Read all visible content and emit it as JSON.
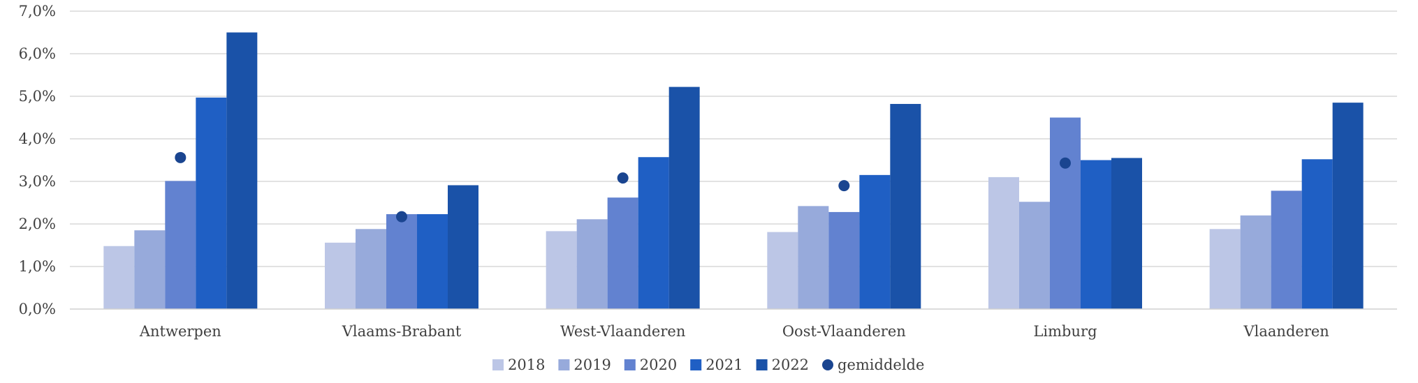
{
  "chart_data": {
    "type": "bar",
    "categories": [
      "Antwerpen",
      "Vlaams-Brabant",
      "West-Vlaanderen",
      "Oost-Vlaanderen",
      "Limburg",
      "Vlaanderen"
    ],
    "series": [
      {
        "name": "2018",
        "color": "#bcc6e6",
        "values": [
          1.48,
          1.56,
          1.83,
          1.81,
          3.1,
          1.88
        ]
      },
      {
        "name": "2019",
        "color": "#97aadb",
        "values": [
          1.85,
          1.88,
          2.11,
          2.42,
          2.52,
          2.2
        ]
      },
      {
        "name": "2020",
        "color": "#6282d0",
        "values": [
          3.01,
          2.23,
          2.62,
          2.28,
          4.5,
          2.78
        ]
      },
      {
        "name": "2021",
        "color": "#1f5fc4",
        "values": [
          4.97,
          2.23,
          3.57,
          3.15,
          3.5,
          3.52
        ]
      },
      {
        "name": "2022",
        "color": "#1a52a8",
        "values": [
          6.5,
          2.91,
          5.22,
          4.82,
          3.55,
          4.85
        ]
      }
    ],
    "markers": {
      "name": "gemiddelde",
      "type": "scatter",
      "color": "#1a4590",
      "values": [
        3.56,
        2.17,
        3.08,
        2.9,
        3.43,
        null
      ]
    },
    "yticks": [
      "0,0%",
      "1,0%",
      "2,0%",
      "3,0%",
      "4,0%",
      "5,0%",
      "6,0%",
      "7,0%"
    ],
    "xlabel": "",
    "ylabel": "",
    "ylim": [
      0,
      7
    ],
    "grid": true,
    "legend_position": "bottom"
  }
}
